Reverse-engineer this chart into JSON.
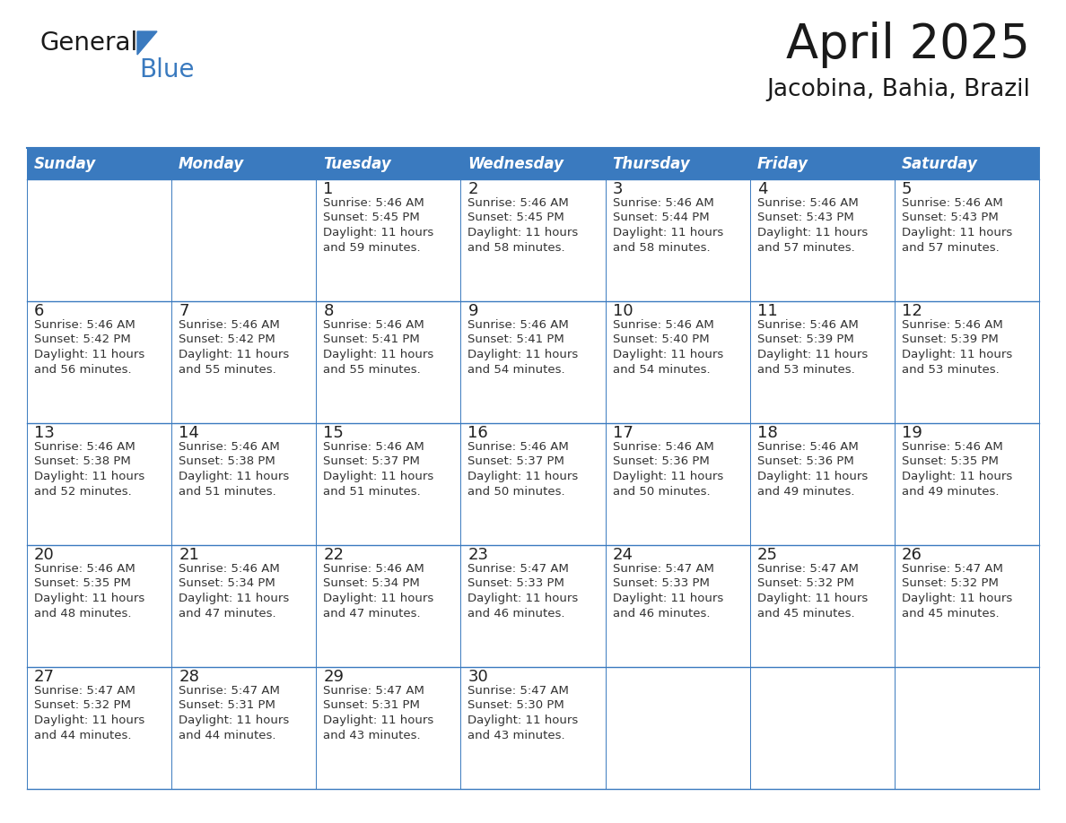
{
  "title": "April 2025",
  "subtitle": "Jacobina, Bahia, Brazil",
  "header_bg_color": "#3a7abf",
  "header_text_color": "#ffffff",
  "border_color": "#3a7abf",
  "row_border_color": "#3a7abf",
  "text_color": "#333333",
  "day_num_color": "#222222",
  "days_of_week": [
    "Sunday",
    "Monday",
    "Tuesday",
    "Wednesday",
    "Thursday",
    "Friday",
    "Saturday"
  ],
  "calendar": [
    [
      {
        "day": "",
        "sunrise": "",
        "sunset": "",
        "daylight": ""
      },
      {
        "day": "",
        "sunrise": "",
        "sunset": "",
        "daylight": ""
      },
      {
        "day": "1",
        "sunrise": "5:46 AM",
        "sunset": "5:45 PM",
        "daylight": "11 hours and 59 minutes."
      },
      {
        "day": "2",
        "sunrise": "5:46 AM",
        "sunset": "5:45 PM",
        "daylight": "11 hours and 58 minutes."
      },
      {
        "day": "3",
        "sunrise": "5:46 AM",
        "sunset": "5:44 PM",
        "daylight": "11 hours and 58 minutes."
      },
      {
        "day": "4",
        "sunrise": "5:46 AM",
        "sunset": "5:43 PM",
        "daylight": "11 hours and 57 minutes."
      },
      {
        "day": "5",
        "sunrise": "5:46 AM",
        "sunset": "5:43 PM",
        "daylight": "11 hours and 57 minutes."
      }
    ],
    [
      {
        "day": "6",
        "sunrise": "5:46 AM",
        "sunset": "5:42 PM",
        "daylight": "11 hours and 56 minutes."
      },
      {
        "day": "7",
        "sunrise": "5:46 AM",
        "sunset": "5:42 PM",
        "daylight": "11 hours and 55 minutes."
      },
      {
        "day": "8",
        "sunrise": "5:46 AM",
        "sunset": "5:41 PM",
        "daylight": "11 hours and 55 minutes."
      },
      {
        "day": "9",
        "sunrise": "5:46 AM",
        "sunset": "5:41 PM",
        "daylight": "11 hours and 54 minutes."
      },
      {
        "day": "10",
        "sunrise": "5:46 AM",
        "sunset": "5:40 PM",
        "daylight": "11 hours and 54 minutes."
      },
      {
        "day": "11",
        "sunrise": "5:46 AM",
        "sunset": "5:39 PM",
        "daylight": "11 hours and 53 minutes."
      },
      {
        "day": "12",
        "sunrise": "5:46 AM",
        "sunset": "5:39 PM",
        "daylight": "11 hours and 53 minutes."
      }
    ],
    [
      {
        "day": "13",
        "sunrise": "5:46 AM",
        "sunset": "5:38 PM",
        "daylight": "11 hours and 52 minutes."
      },
      {
        "day": "14",
        "sunrise": "5:46 AM",
        "sunset": "5:38 PM",
        "daylight": "11 hours and 51 minutes."
      },
      {
        "day": "15",
        "sunrise": "5:46 AM",
        "sunset": "5:37 PM",
        "daylight": "11 hours and 51 minutes."
      },
      {
        "day": "16",
        "sunrise": "5:46 AM",
        "sunset": "5:37 PM",
        "daylight": "11 hours and 50 minutes."
      },
      {
        "day": "17",
        "sunrise": "5:46 AM",
        "sunset": "5:36 PM",
        "daylight": "11 hours and 50 minutes."
      },
      {
        "day": "18",
        "sunrise": "5:46 AM",
        "sunset": "5:36 PM",
        "daylight": "11 hours and 49 minutes."
      },
      {
        "day": "19",
        "sunrise": "5:46 AM",
        "sunset": "5:35 PM",
        "daylight": "11 hours and 49 minutes."
      }
    ],
    [
      {
        "day": "20",
        "sunrise": "5:46 AM",
        "sunset": "5:35 PM",
        "daylight": "11 hours and 48 minutes."
      },
      {
        "day": "21",
        "sunrise": "5:46 AM",
        "sunset": "5:34 PM",
        "daylight": "11 hours and 47 minutes."
      },
      {
        "day": "22",
        "sunrise": "5:46 AM",
        "sunset": "5:34 PM",
        "daylight": "11 hours and 47 minutes."
      },
      {
        "day": "23",
        "sunrise": "5:47 AM",
        "sunset": "5:33 PM",
        "daylight": "11 hours and 46 minutes."
      },
      {
        "day": "24",
        "sunrise": "5:47 AM",
        "sunset": "5:33 PM",
        "daylight": "11 hours and 46 minutes."
      },
      {
        "day": "25",
        "sunrise": "5:47 AM",
        "sunset": "5:32 PM",
        "daylight": "11 hours and 45 minutes."
      },
      {
        "day": "26",
        "sunrise": "5:47 AM",
        "sunset": "5:32 PM",
        "daylight": "11 hours and 45 minutes."
      }
    ],
    [
      {
        "day": "27",
        "sunrise": "5:47 AM",
        "sunset": "5:32 PM",
        "daylight": "11 hours and 44 minutes."
      },
      {
        "day": "28",
        "sunrise": "5:47 AM",
        "sunset": "5:31 PM",
        "daylight": "11 hours and 44 minutes."
      },
      {
        "day": "29",
        "sunrise": "5:47 AM",
        "sunset": "5:31 PM",
        "daylight": "11 hours and 43 minutes."
      },
      {
        "day": "30",
        "sunrise": "5:47 AM",
        "sunset": "5:30 PM",
        "daylight": "11 hours and 43 minutes."
      },
      {
        "day": "",
        "sunrise": "",
        "sunset": "",
        "daylight": ""
      },
      {
        "day": "",
        "sunrise": "",
        "sunset": "",
        "daylight": ""
      },
      {
        "day": "",
        "sunrise": "",
        "sunset": "",
        "daylight": ""
      }
    ]
  ],
  "logo_general_color": "#1a1a1a",
  "logo_blue_color": "#3a7abf",
  "logo_triangle_color": "#3a7abf",
  "title_fontsize": 38,
  "subtitle_fontsize": 19,
  "header_fontsize": 12,
  "day_num_fontsize": 13,
  "cell_text_fontsize": 9.5
}
